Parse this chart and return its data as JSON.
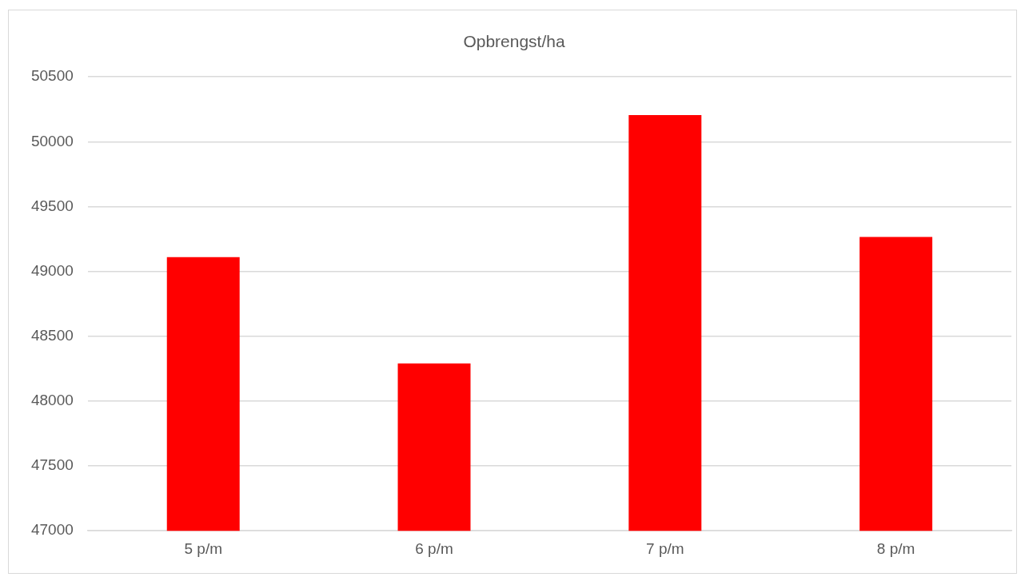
{
  "chart_data": {
    "type": "bar",
    "title": "Opbrengst/ha",
    "categories": [
      "5 p/m",
      "6 p/m",
      "7 p/m",
      "8 p/m"
    ],
    "values": [
      49110,
      48290,
      50205,
      49265
    ],
    "color": "#ff0000",
    "ylim": [
      47000,
      50500
    ],
    "yticks": [
      47000,
      47500,
      48000,
      48500,
      49000,
      49500,
      50000,
      50500
    ],
    "grid": "y",
    "legend": false
  }
}
